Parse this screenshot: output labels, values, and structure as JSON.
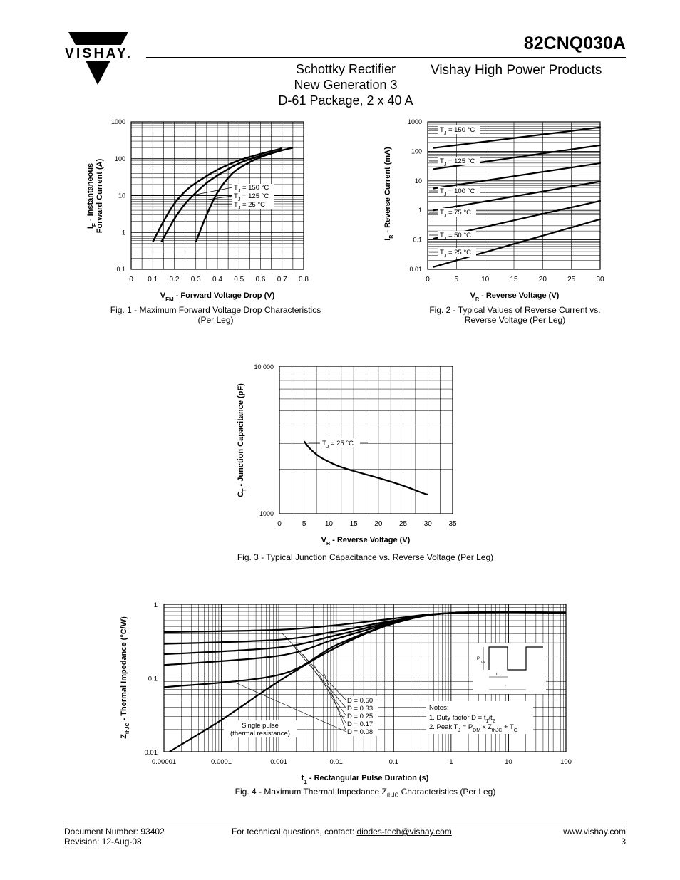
{
  "header": {
    "logo_text": "VISHAY.",
    "part_number": "82CNQ030A",
    "subtitle_lines": [
      "Schottky Rectifier",
      "New Generation 3",
      "D-61 Package, 2 x 40 A"
    ],
    "brand_line": "Vishay High Power Products"
  },
  "figures": {
    "fig1": {
      "caption_lines": [
        "Fig. 1 - Maximum Forward Voltage Drop Characteristics",
        "(Per Leg)"
      ],
      "ylabel_lines": [
        "IF - Instantaneous",
        "Forward Current (A)"
      ],
      "xlabel": "VFM - Forward Voltage Drop (V)",
      "xticks": [
        "0",
        "0.1",
        "0.2",
        "0.3",
        "0.4",
        "0.5",
        "0.6",
        "0.7",
        "0.8"
      ],
      "yticks": [
        "0.1",
        "1",
        "10",
        "100",
        "1000"
      ],
      "legend": [
        "TJ = 150 °C",
        "TJ = 125 °C",
        "TJ = 25 °C"
      ]
    },
    "fig2": {
      "caption_lines": [
        "Fig. 2 - Typical Values of Reverse Current vs.",
        "Reverse Voltage (Per Leg)"
      ],
      "ylabel": "IR - Reverse Current (mA)",
      "xlabel": "VR - Reverse Voltage (V)",
      "xticks": [
        "0",
        "5",
        "10",
        "15",
        "20",
        "25",
        "30"
      ],
      "yticks": [
        "0.01",
        "0.1",
        "1",
        "10",
        "100",
        "1000"
      ],
      "labels": [
        "TJ = 150 °C",
        "TJ = 125 °C",
        "TJ = 100 °C",
        "TJ = 75 °C",
        "TJ = 50 °C",
        "TJ = 25 °C"
      ]
    },
    "fig3": {
      "caption": "Fig. 3 - Typical Junction Capacitance vs. Reverse Voltage (Per Leg)",
      "ylabel": "CT - Junction Capacitance (pF)",
      "xlabel": "VR - Reverse Voltage (V)",
      "xticks": [
        "0",
        "5",
        "10",
        "15",
        "20",
        "25",
        "30",
        "35"
      ],
      "yticks": [
        "1000",
        "10 000"
      ],
      "label": "TJ = 25 °C"
    },
    "fig4": {
      "caption": "Fig. 4 - Maximum Thermal Impedance ZthJC Characteristics (Per Leg)",
      "ylabel": "ZthJC - Thermal Impedance (°C/W)",
      "xlabel": "t1 - Rectangular Pulse Duration (s)",
      "xticks": [
        "0.00001",
        "0.0001",
        "0.001",
        "0.01",
        "0.1",
        "1",
        "10",
        "100"
      ],
      "yticks": [
        "0.01",
        "0.1",
        "1"
      ],
      "duty_labels": [
        "D = 0.50",
        "D = 0.33",
        "D = 0.25",
        "D = 0.17",
        "D = 0.08"
      ],
      "single_pulse_lines": [
        "Single pulse",
        "(thermal resistance)"
      ],
      "notes_title": "Notes:",
      "note1": "1. Duty factor D = t1/t2",
      "note2": "2. Peak TJ = PDM x ZthJC + TC",
      "inset_labels": [
        "PDM",
        "t1",
        "t2"
      ]
    }
  },
  "chart_data": [
    {
      "type": "line",
      "title": "Fig. 1 - Maximum Forward Voltage Drop Characteristics (Per Leg)",
      "xlabel": "VFM - Forward Voltage Drop (V)",
      "ylabel": "IF - Instantaneous Forward Current (A)",
      "xlim": [
        0,
        0.8
      ],
      "ylim": [
        0.1,
        1000
      ],
      "yscale": "log",
      "series": [
        {
          "name": "TJ = 150 °C",
          "x": [
            0.1,
            0.15,
            0.2,
            0.25,
            0.3,
            0.4,
            0.5,
            0.6,
            0.7
          ],
          "y": [
            0.55,
            2,
            6,
            13,
            22,
            50,
            90,
            135,
            190
          ]
        },
        {
          "name": "TJ = 125 °C",
          "x": [
            0.14,
            0.2,
            0.25,
            0.3,
            0.35,
            0.4,
            0.5,
            0.6,
            0.75
          ],
          "y": [
            0.55,
            2.3,
            6,
            12,
            22,
            35,
            75,
            120,
            200
          ]
        },
        {
          "name": "TJ = 25 °C",
          "x": [
            0.3,
            0.35,
            0.4,
            0.45,
            0.5,
            0.6,
            0.7
          ],
          "y": [
            0.55,
            3,
            12,
            30,
            55,
            110,
            170
          ]
        }
      ]
    },
    {
      "type": "line",
      "title": "Fig. 2 - Typical Values of Reverse Current vs. Reverse Voltage (Per Leg)",
      "xlabel": "VR - Reverse Voltage (V)",
      "ylabel": "IR - Reverse Current (mA)",
      "xlim": [
        0,
        30
      ],
      "ylim": [
        0.01,
        1000
      ],
      "yscale": "log",
      "series": [
        {
          "name": "TJ = 150 °C",
          "x": [
            1,
            30
          ],
          "y": [
            130,
            650
          ]
        },
        {
          "name": "TJ = 125 °C",
          "x": [
            1,
            30
          ],
          "y": [
            25,
            160
          ]
        },
        {
          "name": "TJ = 100 °C",
          "x": [
            1,
            30
          ],
          "y": [
            5.5,
            40
          ]
        },
        {
          "name": "TJ = 75 °C",
          "x": [
            1,
            30
          ],
          "y": [
            1.0,
            9.5
          ]
        },
        {
          "name": "TJ = 50 °C",
          "x": [
            1,
            30
          ],
          "y": [
            0.11,
            2.1
          ]
        },
        {
          "name": "TJ = 25 °C",
          "x": [
            1,
            30
          ],
          "y": [
            0.012,
            0.5
          ]
        }
      ]
    },
    {
      "type": "line",
      "title": "Fig. 3 - Typical Junction Capacitance vs. Reverse Voltage (Per Leg)",
      "xlabel": "VR - Reverse Voltage (V)",
      "ylabel": "CT - Junction Capacitance (pF)",
      "xlim": [
        0,
        35
      ],
      "ylim": [
        1000,
        10000
      ],
      "yscale": "log",
      "series": [
        {
          "name": "TJ = 25 °C",
          "x": [
            5,
            6,
            8,
            10,
            12,
            15,
            20,
            25,
            29,
            30
          ],
          "y": [
            3100,
            2800,
            2450,
            2250,
            2100,
            1950,
            1750,
            1550,
            1380,
            1350
          ]
        }
      ]
    },
    {
      "type": "line",
      "title": "Fig. 4 - Maximum Thermal Impedance ZthJC Characteristics (Per Leg)",
      "xlabel": "t1 - Rectangular Pulse Duration (s)",
      "ylabel": "ZthJC - Thermal Impedance (°C/W)",
      "xlim": [
        1e-05,
        100
      ],
      "ylim": [
        0.01,
        1
      ],
      "xscale": "log",
      "yscale": "log",
      "series": [
        {
          "name": "D = 0.50",
          "x": [
            1e-05,
            0.001,
            0.01,
            0.1,
            1,
            100
          ],
          "y": [
            0.42,
            0.45,
            0.52,
            0.64,
            0.76,
            0.77
          ]
        },
        {
          "name": "D = 0.33",
          "x": [
            1e-05,
            0.001,
            0.01,
            0.1,
            1,
            100
          ],
          "y": [
            0.29,
            0.33,
            0.43,
            0.6,
            0.76,
            0.77
          ]
        },
        {
          "name": "D = 0.25",
          "x": [
            1e-05,
            0.001,
            0.01,
            0.1,
            1,
            100
          ],
          "y": [
            0.21,
            0.26,
            0.38,
            0.58,
            0.76,
            0.77
          ]
        },
        {
          "name": "D = 0.17",
          "x": [
            1e-05,
            0.001,
            0.01,
            0.1,
            1,
            100
          ],
          "y": [
            0.15,
            0.2,
            0.34,
            0.56,
            0.76,
            0.77
          ]
        },
        {
          "name": "D = 0.08",
          "x": [
            1e-05,
            0.001,
            0.01,
            0.1,
            1,
            100
          ],
          "y": [
            0.075,
            0.11,
            0.28,
            0.55,
            0.76,
            0.77
          ]
        },
        {
          "name": "Single pulse (thermal resistance)",
          "x": [
            1.25e-05,
            0.0001,
            0.001,
            0.01,
            0.1,
            1,
            100
          ],
          "y": [
            0.01,
            0.027,
            0.09,
            0.26,
            0.55,
            0.76,
            0.77
          ]
        }
      ]
    }
  ],
  "footer": {
    "doc_number": "Document Number: 93402",
    "revision": "Revision: 12-Aug-08",
    "contact_prefix": "For technical questions, contact: ",
    "contact_email": "diodes-tech@vishay.com",
    "website": "www.vishay.com",
    "page": "3"
  }
}
